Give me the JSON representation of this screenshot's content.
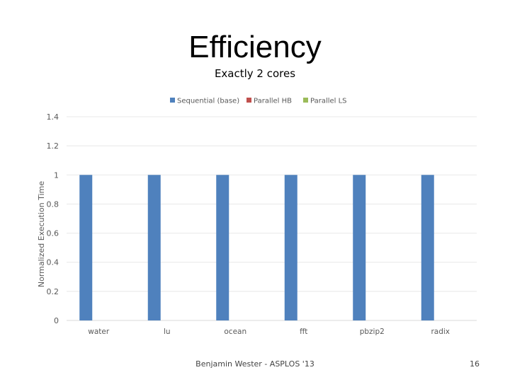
{
  "slide": {
    "title": "Efficiency",
    "subtitle": "Exactly 2 cores",
    "footer": "Benjamin Wester - ASPLOS '13",
    "page_number": "16"
  },
  "chart_data": {
    "type": "bar",
    "title": "",
    "xlabel": "",
    "ylabel": "Normalized Execution Time",
    "ylim": [
      0,
      1.4
    ],
    "yticks": [
      "0",
      "0.2",
      "0.4",
      "0.6",
      "0.8",
      "1",
      "1.2",
      "1.4"
    ],
    "grid": true,
    "legend_position": "top",
    "categories": [
      "water",
      "lu",
      "ocean",
      "fft",
      "pbzip2",
      "radix"
    ],
    "series": [
      {
        "name": "Sequential (base)",
        "color": "#4f81bd",
        "values": [
          1,
          1,
          1,
          1,
          1,
          1
        ]
      },
      {
        "name": "Parallel HB",
        "color": "#c0504d",
        "values": [
          null,
          null,
          null,
          null,
          null,
          null
        ]
      },
      {
        "name": "Parallel LS",
        "color": "#9bbb59",
        "values": [
          null,
          null,
          null,
          null,
          null,
          null
        ]
      }
    ]
  }
}
